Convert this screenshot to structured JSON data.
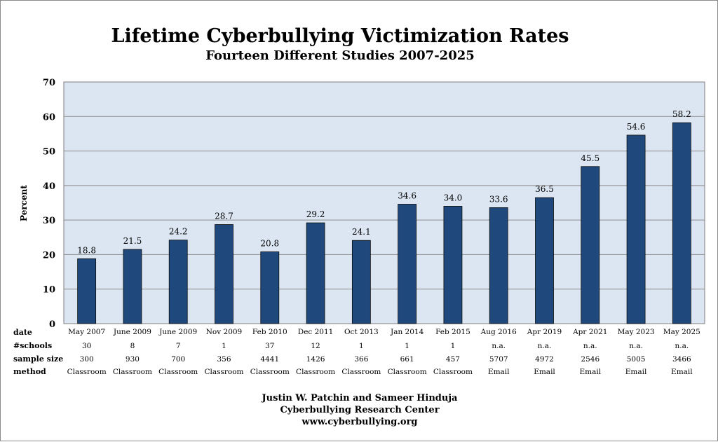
{
  "chart_data": {
    "type": "bar",
    "title": "Lifetime Cyberbullying Victimization Rates",
    "subtitle": "Fourteen Different Studies 2007-2025",
    "ylabel": "Percent",
    "ylim": [
      0,
      70
    ],
    "yticks": [
      0,
      10,
      20,
      30,
      40,
      50,
      60,
      70
    ],
    "grid": true,
    "colors": {
      "bar": "#1f497d",
      "plot_bg": "#dce6f2",
      "grid": "#8c8c8c"
    },
    "categories": [
      "May 2007",
      "June 2009",
      "June 2009",
      "Nov 2009",
      "Feb 2010",
      "Dec 2011",
      "Oct 2013",
      "Jan 2014",
      "Feb 2015",
      "Aug 2016",
      "Apr 2019",
      "Apr 2021",
      "May 2023",
      "May 2025"
    ],
    "values": [
      18.8,
      21.5,
      24.2,
      28.7,
      20.8,
      29.2,
      24.1,
      34.6,
      34.0,
      33.6,
      36.5,
      45.5,
      54.6,
      58.2
    ],
    "value_labels": [
      "18.8",
      "21.5",
      "24.2",
      "28.7",
      "20.8",
      "29.2",
      "24.1",
      "34.6",
      "34.0",
      "33.6",
      "36.5",
      "45.5",
      "54.6",
      "58.2"
    ]
  },
  "table": {
    "row_headers": [
      "date",
      "#schools",
      "sample size",
      "method"
    ],
    "schools": [
      "30",
      "8",
      "7",
      "1",
      "37",
      "12",
      "1",
      "1",
      "1",
      "n.a.",
      "n.a.",
      "n.a.",
      "n.a.",
      "n.a."
    ],
    "sample_size": [
      "300",
      "930",
      "700",
      "356",
      "4441",
      "1426",
      "366",
      "661",
      "457",
      "5707",
      "4972",
      "2546",
      "5005",
      "3466"
    ],
    "method": [
      "Classroom",
      "Classroom",
      "Classroom",
      "Classroom",
      "Classroom",
      "Classroom",
      "Classroom",
      "Classroom",
      "Classroom",
      "Email",
      "Email",
      "Email",
      "Email",
      "Email"
    ]
  },
  "footer": {
    "line1": "Justin W. Patchin and Sameer Hinduja",
    "line2": "Cyberbullying Research Center",
    "line3": "www.cyberbullying.org"
  }
}
